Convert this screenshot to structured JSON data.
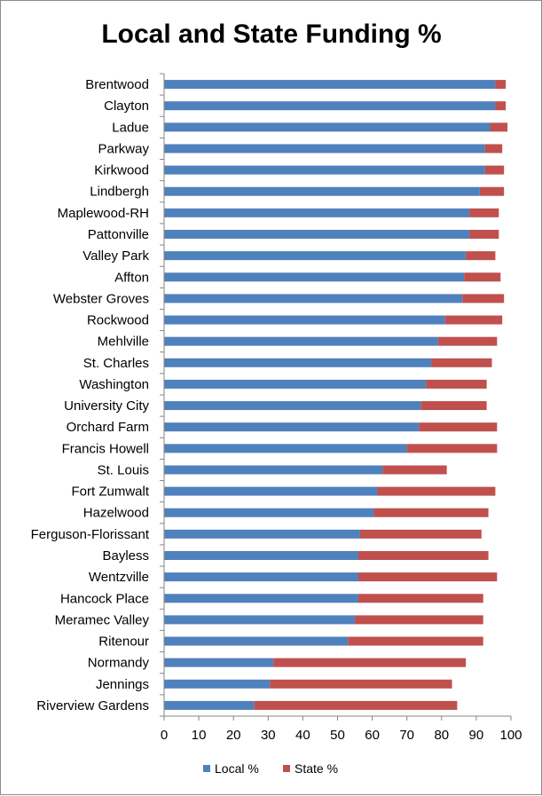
{
  "chart_data": {
    "type": "bar",
    "orientation": "horizontal",
    "stacked": true,
    "title": "Local and State Funding %",
    "categories": [
      "Brentwood",
      "Clayton",
      "Ladue",
      "Parkway",
      "Kirkwood",
      "Lindbergh",
      "Maplewood-RH",
      "Pattonville",
      "Valley Park",
      "Affton",
      "Webster Groves",
      "Rockwood",
      "Mehlville",
      "St. Charles",
      "Washington",
      "University City",
      "Orchard Farm",
      "Francis Howell",
      "St. Louis",
      "Fort Zumwalt",
      "Hazelwood",
      "Ferguson-Florissant",
      "Bayless",
      "Wentzville",
      "Hancock Place",
      "Meramec Valley",
      "Ritenour",
      "Normandy",
      "Jennings",
      "Riverview Gardens"
    ],
    "series": [
      {
        "name": "Local %",
        "color": "#4f81bd",
        "values": [
          95.5,
          95.5,
          94,
          92.5,
          92.5,
          91,
          88,
          88,
          87,
          86.5,
          86,
          81,
          79,
          77,
          75.5,
          74,
          73.5,
          70,
          63,
          61.5,
          60.5,
          56.5,
          56,
          56,
          56,
          55,
          53,
          31.5,
          30.5,
          26
        ]
      },
      {
        "name": "State %",
        "color": "#c0504d",
        "values": [
          3,
          3,
          5,
          5,
          5.5,
          7,
          8.5,
          8.5,
          8.5,
          10.5,
          12,
          16.5,
          17,
          17.5,
          17.5,
          19,
          22.5,
          26,
          18.5,
          34,
          33,
          35,
          37.5,
          40,
          36,
          37,
          39,
          55.5,
          52.5,
          58.5
        ]
      }
    ],
    "xlim": [
      0,
      100
    ],
    "xticks": [
      "0",
      "10",
      "20",
      "30",
      "40",
      "50",
      "60",
      "70",
      "80",
      "90",
      "100"
    ],
    "grid": false,
    "legend": "bottom"
  }
}
